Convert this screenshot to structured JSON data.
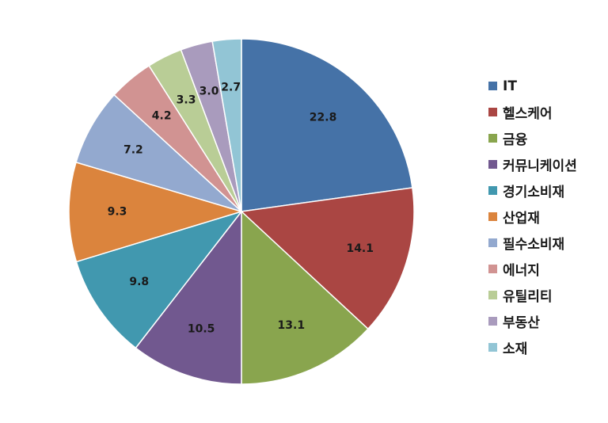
{
  "chart_data": {
    "type": "pie",
    "title": "",
    "start_angle_deg": 0,
    "direction": "clockwise",
    "legend_position": "right",
    "slices": [
      {
        "label": "IT",
        "value": 22.8,
        "value_label": "22.8",
        "color": "#4572A7"
      },
      {
        "label": "헬스케어",
        "value": 14.1,
        "value_label": "14.1",
        "color": "#AA4643"
      },
      {
        "label": "금융",
        "value": 13.1,
        "value_label": "13.1",
        "color": "#89A54E"
      },
      {
        "label": "커뮤니케이션",
        "value": 10.5,
        "value_label": "10.5",
        "color": "#71588F"
      },
      {
        "label": "경기소비재",
        "value": 9.8,
        "value_label": "9.8",
        "color": "#4198AF"
      },
      {
        "label": "산업재",
        "value": 9.3,
        "value_label": "9.3",
        "color": "#DB843D"
      },
      {
        "label": "필수소비재",
        "value": 7.2,
        "value_label": "7.2",
        "color": "#93A9CF"
      },
      {
        "label": "에너지",
        "value": 4.2,
        "value_label": "4.2",
        "color": "#D19392"
      },
      {
        "label": "유틸리티",
        "value": 3.3,
        "value_label": "3.3",
        "color": "#B9CD96"
      },
      {
        "label": "부동산",
        "value": 3.0,
        "value_label": "3.0",
        "color": "#A99BBD"
      },
      {
        "label": "소재",
        "value": 2.7,
        "value_label": "2.7",
        "color": "#92C5D5"
      }
    ]
  }
}
